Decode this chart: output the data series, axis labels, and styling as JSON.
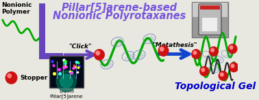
{
  "title_line1": "Pillar[5]arene-based",
  "title_line2": "Nonionic Polyrotaxanes",
  "title_color": "#7755dd",
  "title_fontsize": 10.5,
  "label_nonionic": "Nonionic\nPolymer",
  "label_stopper": "Stopper",
  "label_click": "\"Click\"",
  "label_metathesis": "\"Metathesis\"",
  "label_liquid": "Liquid\nPillar[5]arene",
  "label_topo": "Topological Gel",
  "topo_color": "#0000cc",
  "bg_color": "#e8e8e0",
  "purple_color": "#6644bb",
  "blue_arrow_color": "#1144cc",
  "red_color": "#cc1111",
  "green_color": "#00aa00",
  "dark_green": "#004400",
  "ring_color": "#8899bb",
  "photo_bg": "#aaaaaa",
  "inset_bg": "#050a1a"
}
